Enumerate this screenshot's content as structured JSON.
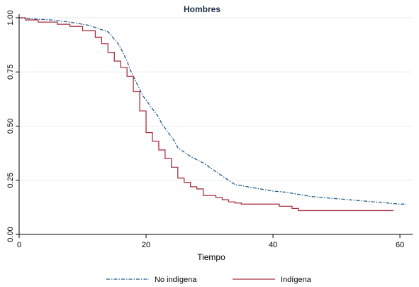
{
  "chart_data": {
    "type": "line",
    "title": "Hombres",
    "xlabel": "Tiempo",
    "ylabel": "",
    "xlim": [
      0,
      62
    ],
    "ylim": [
      0,
      1
    ],
    "xticks": [
      0,
      20,
      40,
      60
    ],
    "yticks": [
      0.0,
      0.25,
      0.5,
      0.75,
      1.0
    ],
    "xtick_labels": [
      "0",
      "20",
      "40",
      "60"
    ],
    "ytick_labels": [
      "0.00",
      "0.25",
      "0.50",
      "0.75",
      "1.00"
    ],
    "grid": true,
    "legend_position": "bottom",
    "series": [
      {
        "name": "No indígena",
        "style": "dash-dot",
        "color": "#1f5a8a",
        "x": [
          0,
          2,
          5,
          8,
          10,
          11,
          12,
          13,
          14,
          14.5,
          15,
          15.5,
          16,
          16.5,
          17,
          17.5,
          18,
          18.5,
          19,
          19.5,
          20,
          20.5,
          21,
          21.5,
          22,
          22.5,
          23,
          23.5,
          24,
          24.5,
          25,
          25.5,
          26,
          27,
          28,
          29,
          30,
          31,
          32,
          33,
          34,
          35,
          36,
          38,
          40,
          42,
          44,
          46,
          48,
          50,
          52,
          54,
          56,
          58,
          60,
          61
        ],
        "y": [
          1.0,
          0.995,
          0.99,
          0.98,
          0.97,
          0.965,
          0.955,
          0.945,
          0.935,
          0.92,
          0.9,
          0.885,
          0.86,
          0.83,
          0.8,
          0.76,
          0.73,
          0.7,
          0.67,
          0.64,
          0.62,
          0.6,
          0.58,
          0.56,
          0.54,
          0.51,
          0.49,
          0.47,
          0.45,
          0.43,
          0.4,
          0.39,
          0.38,
          0.36,
          0.345,
          0.33,
          0.31,
          0.29,
          0.27,
          0.25,
          0.23,
          0.225,
          0.22,
          0.21,
          0.2,
          0.195,
          0.185,
          0.175,
          0.17,
          0.165,
          0.16,
          0.155,
          0.15,
          0.145,
          0.14,
          0.14
        ]
      },
      {
        "name": "Indígena",
        "style": "step",
        "color": "#a8323f",
        "x": [
          0,
          1,
          3,
          6,
          8,
          10,
          12,
          13,
          14,
          15,
          16,
          17,
          18,
          19,
          20,
          21,
          22,
          23,
          24,
          25,
          26,
          27,
          28,
          29,
          31,
          32,
          33,
          34,
          35,
          40,
          41,
          43,
          44,
          45,
          59
        ],
        "y": [
          1.0,
          0.99,
          0.98,
          0.97,
          0.96,
          0.94,
          0.91,
          0.88,
          0.84,
          0.8,
          0.77,
          0.73,
          0.66,
          0.57,
          0.47,
          0.43,
          0.39,
          0.35,
          0.31,
          0.26,
          0.24,
          0.22,
          0.21,
          0.18,
          0.17,
          0.16,
          0.15,
          0.145,
          0.14,
          0.14,
          0.13,
          0.12,
          0.11,
          0.11,
          0.11
        ]
      }
    ]
  }
}
